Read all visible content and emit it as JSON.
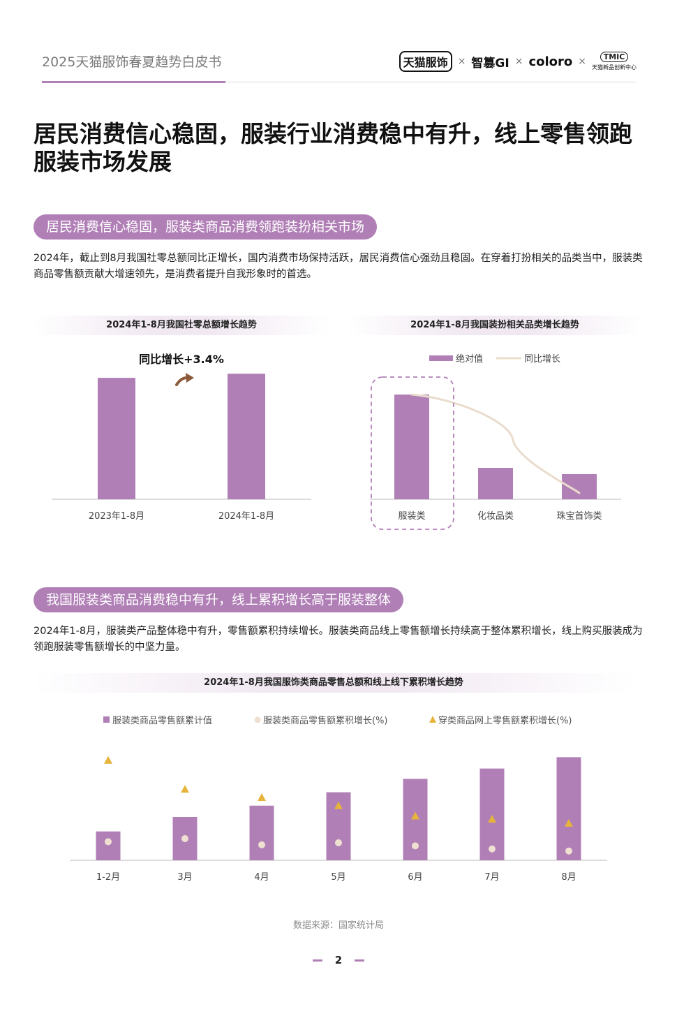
{
  "header": {
    "title": "2025天猫服饰春夏趋势白皮书",
    "logos": [
      "天猫服饰",
      "智篡GI",
      "coloro",
      "TMIC"
    ],
    "logo_sub": "天猫新品创新中心",
    "separator": "×"
  },
  "main_title": "居民消费信心稳固，服装行业消费稳中有升，线上零售领跑服装市场发展",
  "section1": {
    "pill": "居民消费信心稳固，服装类商品消费领跑装扮相关市场",
    "paragraph": "2024年，截止到8月我国社零总额同比正增长，国内消费市场保持活跃，居民消费信心强劲且稳固。在穿着打扮相关的品类当中，服装类商品零售额贡献大增速领先，是消费者提升自我形象时的首选。"
  },
  "section2": {
    "pill": "我国服装类商品消费稳中有升，线上累积增长高于服装整体",
    "paragraph": "2024年1-8月，服装类产品整体稳中有升，零售额累积持续增长。服装类商品线上零售额增长持续高于整体累积增长，线上购买服装成为领跑服装零售额增长的中坚力量。"
  },
  "source": "数据来源：国家统计局",
  "page_number": "2",
  "colors": {
    "accent": "#b07fb6",
    "line": "#eadccd",
    "triangle": "#e6b43a",
    "dot": "#efe0d2"
  },
  "chart_data": [
    {
      "type": "bar",
      "title": "2024年1-8月我国社零总额增长趋势",
      "annotation": "同比增长+3.4%",
      "categories": [
        "2023年1-8月",
        "2024年1-8月"
      ],
      "values": [
        100,
        103.4
      ],
      "ylim": [
        0,
        115
      ],
      "grid": false
    },
    {
      "type": "bar",
      "title": "2024年1-8月我国装扮相关品类增长趋势",
      "categories": [
        "服装类",
        "化妆品类",
        "珠宝首饰类"
      ],
      "series": [
        {
          "name": "绝对值",
          "type": "bar",
          "values": [
            100,
            30,
            24
          ]
        },
        {
          "name": "同比增长",
          "type": "line",
          "values": [
            100,
            62,
            6
          ]
        }
      ],
      "ylim": [
        0,
        110
      ],
      "highlight": "服装类",
      "legend": "top"
    },
    {
      "type": "bar",
      "title": "2024年1-8月我国服饰类商品零售总额和线上线下累积增长趋势",
      "categories": [
        "1-2月",
        "3月",
        "4月",
        "5月",
        "6月",
        "7月",
        "8月"
      ],
      "series": [
        {
          "name": "服装类商品零售额累计值",
          "type": "bar",
          "values": [
            28,
            42,
            53,
            66,
            79,
            89,
            100
          ]
        },
        {
          "name": "服装类商品零售额累积增长(%)",
          "type": "scatter",
          "values": [
            18,
            21,
            15,
            17,
            14,
            11,
            9
          ]
        },
        {
          "name": "穿类商品网上零售额累积增长(%)",
          "type": "scatter",
          "values": [
            97,
            69,
            61,
            53,
            43,
            40,
            36
          ]
        }
      ],
      "ylim": [
        0,
        105
      ],
      "legend": "top"
    }
  ]
}
